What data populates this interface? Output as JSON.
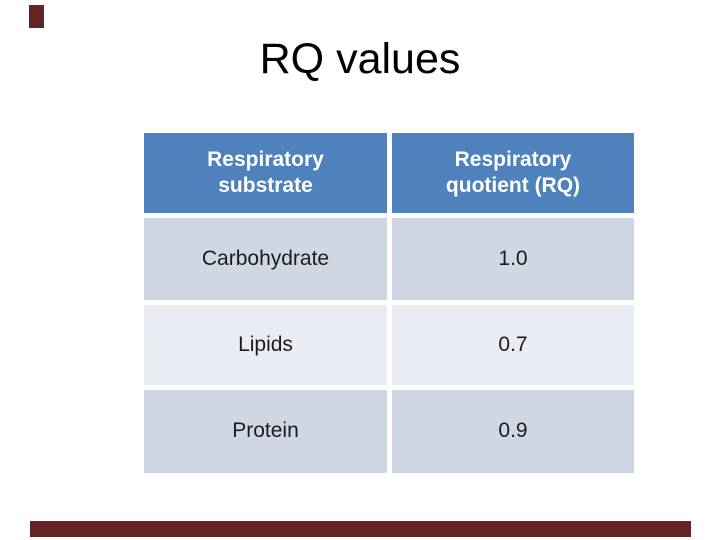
{
  "slide": {
    "title": "RQ values"
  },
  "colors": {
    "accent_red": "#632423",
    "header_blue": "#4f81bd",
    "row_band_dark": "#cfd6e4",
    "row_band_light": "#e9ecf3",
    "header_text": "#ffffff",
    "body_text": "#1c1c1c"
  },
  "table": {
    "columns": [
      {
        "label": "Respiratory substrate"
      },
      {
        "label": "Respiratory quotient (RQ)"
      }
    ],
    "rows": [
      {
        "substrate": "Carbohydrate",
        "rq": "1.0"
      },
      {
        "substrate": "Lipids",
        "rq": "0.7"
      },
      {
        "substrate": "Protein",
        "rq": "0.9"
      }
    ]
  }
}
